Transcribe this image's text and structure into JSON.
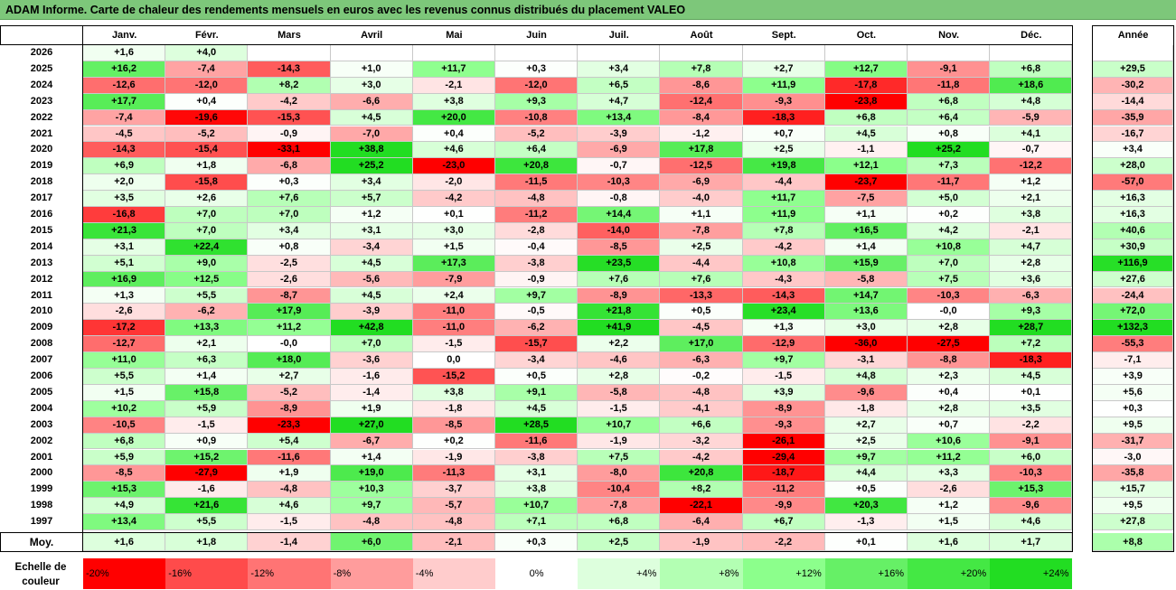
{
  "title": "ADAM Informe. Carte de chaleur des rendements mensuels en euros avec les revenus connus distribués du placement VALEO",
  "chart_data": {
    "type": "heatmap",
    "title": "ADAM Informe. Carte de chaleur des rendements mensuels en euros avec les revenus connus distribués du placement VALEO",
    "columns": [
      "Janv.",
      "Févr.",
      "Mars",
      "Avril",
      "Mai",
      "Juin",
      "Juil.",
      "Août",
      "Sept.",
      "Oct.",
      "Nov.",
      "Déc."
    ],
    "year_column_label": "Année",
    "average_row_label": "Moy.",
    "rows": [
      {
        "year": "2026",
        "months": [
          "+1,6",
          "+4,0",
          "",
          "",
          "",
          "",
          "",
          "",
          "",
          "",
          "",
          ""
        ],
        "annual": ""
      },
      {
        "year": "2025",
        "months": [
          "+16,2",
          "-7,4",
          "-14,3",
          "+1,0",
          "+11,7",
          "+0,3",
          "+3,4",
          "+7,8",
          "+2,7",
          "+12,7",
          "-9,1",
          "+6,8"
        ],
        "annual": "+29,5"
      },
      {
        "year": "2024",
        "months": [
          "-12,6",
          "-12,0",
          "+8,2",
          "+3,0",
          "-2,1",
          "-12,0",
          "+6,5",
          "-8,6",
          "+11,9",
          "-17,8",
          "-11,8",
          "+18,6"
        ],
        "annual": "-30,2"
      },
      {
        "year": "2023",
        "months": [
          "+17,7",
          "+0,4",
          "-4,2",
          "-6,6",
          "+3,8",
          "+9,3",
          "+4,7",
          "-12,4",
          "-9,3",
          "-23,8",
          "+6,8",
          "+4,8"
        ],
        "annual": "-14,4"
      },
      {
        "year": "2022",
        "months": [
          "-7,4",
          "-19,6",
          "-15,3",
          "+4,5",
          "+20,0",
          "-10,8",
          "+13,4",
          "-8,4",
          "-18,3",
          "+6,8",
          "+6,4",
          "-5,9"
        ],
        "annual": "-35,9"
      },
      {
        "year": "2021",
        "months": [
          "-4,5",
          "-5,2",
          "-0,9",
          "-7,0",
          "+0,4",
          "-5,2",
          "-3,9",
          "-1,2",
          "+0,7",
          "+4,5",
          "+0,8",
          "+4,1"
        ],
        "annual": "-16,7"
      },
      {
        "year": "2020",
        "months": [
          "-14,3",
          "-15,4",
          "-33,1",
          "+38,8",
          "+4,6",
          "+6,4",
          "-6,9",
          "+17,8",
          "+2,5",
          "-1,1",
          "+25,2",
          "-0,7"
        ],
        "annual": "+3,4"
      },
      {
        "year": "2019",
        "months": [
          "+6,9",
          "+1,8",
          "-6,8",
          "+25,2",
          "-23,0",
          "+20,8",
          "-0,7",
          "-12,5",
          "+19,8",
          "+12,1",
          "+7,3",
          "-12,2"
        ],
        "annual": "+28,0"
      },
      {
        "year": "2018",
        "months": [
          "+2,0",
          "-15,8",
          "+0,3",
          "+3,4",
          "-2,0",
          "-11,5",
          "-10,3",
          "-6,9",
          "-4,4",
          "-23,7",
          "-11,7",
          "+1,2"
        ],
        "annual": "-57,0"
      },
      {
        "year": "2017",
        "months": [
          "+3,5",
          "+2,6",
          "+7,6",
          "+5,7",
          "-4,2",
          "-4,8",
          "-0,8",
          "-4,0",
          "+11,7",
          "-7,5",
          "+5,0",
          "+2,1"
        ],
        "annual": "+16,3"
      },
      {
        "year": "2016",
        "months": [
          "-16,8",
          "+7,0",
          "+7,0",
          "+1,2",
          "+0,1",
          "-11,2",
          "+14,4",
          "+1,1",
          "+11,9",
          "+1,1",
          "+0,2",
          "+3,8"
        ],
        "annual": "+16,3"
      },
      {
        "year": "2015",
        "months": [
          "+21,3",
          "+7,0",
          "+3,4",
          "+3,1",
          "+3,0",
          "-2,8",
          "-14,0",
          "-7,8",
          "+7,8",
          "+16,5",
          "+4,2",
          "-2,1"
        ],
        "annual": "+40,6"
      },
      {
        "year": "2014",
        "months": [
          "+3,1",
          "+22,4",
          "+0,8",
          "-3,4",
          "+1,5",
          "-0,4",
          "-8,5",
          "+2,5",
          "-4,2",
          "+1,4",
          "+10,8",
          "+4,7"
        ],
        "annual": "+30,9"
      },
      {
        "year": "2013",
        "months": [
          "+5,1",
          "+9,0",
          "-2,5",
          "+4,5",
          "+17,3",
          "-3,8",
          "+23,5",
          "-4,4",
          "+10,8",
          "+15,9",
          "+7,0",
          "+2,8"
        ],
        "annual": "+116,9"
      },
      {
        "year": "2012",
        "months": [
          "+16,9",
          "+12,5",
          "-2,6",
          "-5,6",
          "-7,9",
          "-0,9",
          "+7,6",
          "+7,6",
          "-4,3",
          "-5,8",
          "+7,5",
          "+3,6"
        ],
        "annual": "+27,6"
      },
      {
        "year": "2011",
        "months": [
          "+1,3",
          "+5,5",
          "-8,7",
          "+4,5",
          "+2,4",
          "+9,7",
          "-8,9",
          "-13,3",
          "-14,3",
          "+14,7",
          "-10,3",
          "-6,3"
        ],
        "annual": "-24,4"
      },
      {
        "year": "2010",
        "months": [
          "-2,6",
          "-6,2",
          "+17,9",
          "-3,9",
          "-11,0",
          "-0,5",
          "+21,8",
          "+0,5",
          "+23,4",
          "+13,6",
          "-0,0",
          "+9,3"
        ],
        "annual": "+72,0"
      },
      {
        "year": "2009",
        "months": [
          "-17,2",
          "+13,3",
          "+11,2",
          "+42,8",
          "-11,0",
          "-6,2",
          "+41,9",
          "-4,5",
          "+1,3",
          "+3,0",
          "+2,8",
          "+28,7"
        ],
        "annual": "+132,3"
      },
      {
        "year": "2008",
        "months": [
          "-12,7",
          "+2,1",
          "-0,0",
          "+7,0",
          "-1,5",
          "-15,7",
          "+2,2",
          "+17,0",
          "-12,9",
          "-36,0",
          "-27,5",
          "+7,2"
        ],
        "annual": "-55,3"
      },
      {
        "year": "2007",
        "months": [
          "+11,0",
          "+6,3",
          "+18,0",
          "-3,6",
          "0,0",
          "-3,4",
          "-4,6",
          "-6,3",
          "+9,7",
          "-3,1",
          "-8,8",
          "-18,3"
        ],
        "annual": "-7,1"
      },
      {
        "year": "2006",
        "months": [
          "+5,5",
          "+1,4",
          "+2,7",
          "-1,6",
          "-15,2",
          "+0,5",
          "+2,8",
          "-0,2",
          "-1,5",
          "+4,8",
          "+2,3",
          "+4,5"
        ],
        "annual": "+3,9"
      },
      {
        "year": "2005",
        "months": [
          "+1,5",
          "+15,8",
          "-5,2",
          "-1,4",
          "+3,8",
          "+9,1",
          "-5,8",
          "-4,8",
          "+3,9",
          "-9,6",
          "+0,4",
          "+0,1"
        ],
        "annual": "+5,6"
      },
      {
        "year": "2004",
        "months": [
          "+10,2",
          "+5,9",
          "-8,9",
          "+1,9",
          "-1,8",
          "+4,5",
          "-1,5",
          "-4,1",
          "-8,9",
          "-1,8",
          "+2,8",
          "+3,5"
        ],
        "annual": "+0,3"
      },
      {
        "year": "2003",
        "months": [
          "-10,5",
          "-1,5",
          "-23,3",
          "+27,0",
          "-8,5",
          "+28,5",
          "+10,7",
          "+6,6",
          "-9,3",
          "+2,7",
          "+0,7",
          "-2,2"
        ],
        "annual": "+9,5"
      },
      {
        "year": "2002",
        "months": [
          "+6,8",
          "+0,9",
          "+5,4",
          "-6,7",
          "+0,2",
          "-11,6",
          "-1,9",
          "-3,2",
          "-26,1",
          "+2,5",
          "+10,6",
          "-9,1"
        ],
        "annual": "-31,7"
      },
      {
        "year": "2001",
        "months": [
          "+5,9",
          "+15,2",
          "-11,6",
          "+1,4",
          "-1,9",
          "-3,8",
          "+7,5",
          "-4,2",
          "-29,4",
          "+9,7",
          "+11,2",
          "+6,0"
        ],
        "annual": "-3,0"
      },
      {
        "year": "2000",
        "months": [
          "-8,5",
          "-27,9",
          "+1,9",
          "+19,0",
          "-11,3",
          "+3,1",
          "-8,0",
          "+20,8",
          "-18,7",
          "+4,4",
          "+3,3",
          "-10,3"
        ],
        "annual": "-35,8"
      },
      {
        "year": "1999",
        "months": [
          "+15,3",
          "-1,6",
          "-4,8",
          "+10,3",
          "-3,7",
          "+3,8",
          "-10,4",
          "+8,2",
          "-11,2",
          "+0,5",
          "-2,6",
          "+15,3"
        ],
        "annual": "+15,7"
      },
      {
        "year": "1998",
        "months": [
          "+4,9",
          "+21,6",
          "+4,6",
          "+9,7",
          "-5,7",
          "+10,7",
          "-7,8",
          "-22,1",
          "-9,9",
          "+20,3",
          "+1,2",
          "-9,6"
        ],
        "annual": "+9,5"
      },
      {
        "year": "1997",
        "months": [
          "+13,4",
          "+5,5",
          "-1,5",
          "-4,8",
          "-4,8",
          "+7,1",
          "+6,8",
          "-6,4",
          "+6,7",
          "-1,3",
          "+1,5",
          "+4,6"
        ],
        "annual": "+27,8"
      }
    ],
    "average": {
      "months": [
        "+1,6",
        "+1,8",
        "-1,4",
        "+6,0",
        "-2,1",
        "+0,3",
        "+2,5",
        "-1,9",
        "-2,2",
        "+0,1",
        "+1,6",
        "+1,7"
      ],
      "annual": "+8,8"
    },
    "color_scale": {
      "label": "Echelle de couleur",
      "stops": [
        {
          "label": "-20%",
          "value": -20,
          "color": "#ff0000"
        },
        {
          "label": "-16%",
          "value": -16,
          "color": "#ff4b4b"
        },
        {
          "label": "-12%",
          "value": -12,
          "color": "#ff7474"
        },
        {
          "label": "-8%",
          "value": -8,
          "color": "#ff9c9c"
        },
        {
          "label": "-4%",
          "value": -4,
          "color": "#ffcccc"
        },
        {
          "label": "0%",
          "value": 0,
          "color": "#ffffff"
        },
        {
          "label": "+4%",
          "value": 4,
          "color": "#ddffdd"
        },
        {
          "label": "+8%",
          "value": 8,
          "color": "#b3ffb3"
        },
        {
          "label": "+12%",
          "value": 12,
          "color": "#8cff8c"
        },
        {
          "label": "+16%",
          "value": 16,
          "color": "#66f066"
        },
        {
          "label": "+20%",
          "value": 20,
          "color": "#44e844"
        },
        {
          "label": "+24%",
          "value": 24,
          "color": "#22dd22"
        }
      ]
    },
    "colors": {
      "title_bar": "#7dc77a",
      "negative": "#ff0000",
      "positive": "#22dd22",
      "empty": "#ffffff"
    }
  }
}
